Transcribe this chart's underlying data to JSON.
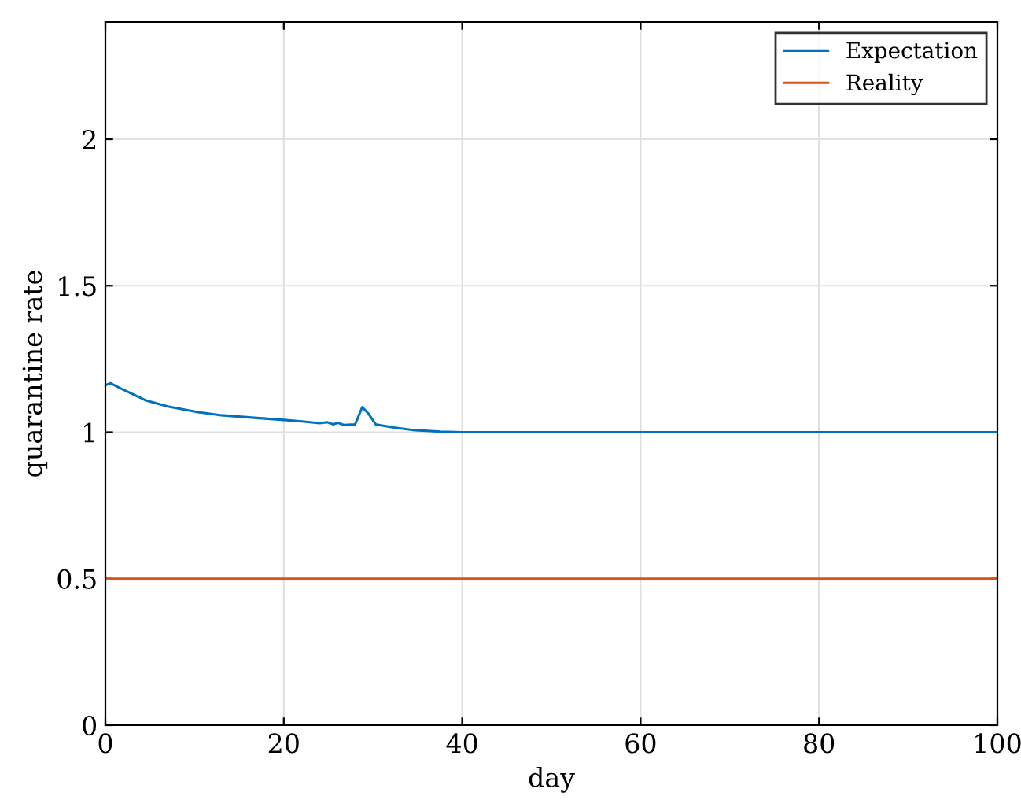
{
  "chart_data": {
    "type": "line",
    "xlabel": "day",
    "ylabel": "quarantine rate",
    "xlim": [
      0,
      100
    ],
    "ylim": [
      0,
      2.4
    ],
    "xticks": [
      0,
      20,
      40,
      60,
      80,
      100
    ],
    "yticks": [
      0,
      0.5,
      1,
      1.5,
      2
    ],
    "grid": true,
    "legend": "top right",
    "line_style": "solid",
    "marker": "none",
    "series": [
      {
        "name": "Expectation",
        "color": "#0072bd",
        "x": [
          0,
          0.6,
          2,
          4.6,
          7,
          10.5,
          13,
          16.4,
          20,
          22.3,
          24,
          24.9,
          25.5,
          26.1,
          26.7,
          28,
          28.8,
          29.5,
          30.3,
          32.3,
          34.7,
          37.6,
          40,
          60,
          80,
          100
        ],
        "values": [
          1.161,
          1.167,
          1.145,
          1.108,
          1.088,
          1.068,
          1.058,
          1.05,
          1.042,
          1.036,
          1.031,
          1.034,
          1.027,
          1.032,
          1.025,
          1.027,
          1.086,
          1.063,
          1.027,
          1.016,
          1.007,
          1.002,
          1.0,
          1.0,
          1.0,
          1.0
        ]
      },
      {
        "name": "Reality",
        "color": "#d95319",
        "x": [
          0,
          100
        ],
        "values": [
          0.5,
          0.5
        ]
      }
    ]
  }
}
